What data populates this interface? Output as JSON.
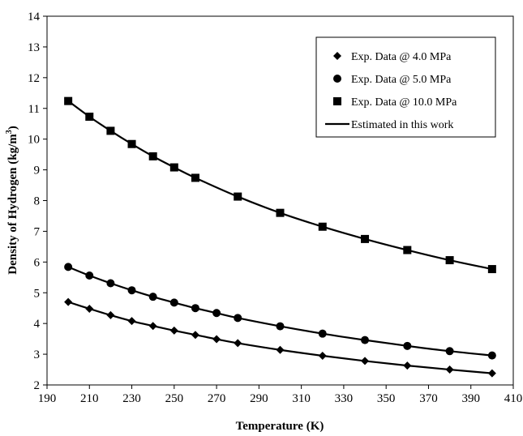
{
  "chart_data": {
    "type": "line",
    "xlabel": "Temperature (K)",
    "ylabel": "Density of Hydrogen (kg/m",
    "ylabel_sup": "3",
    "ylabel_close": ")",
    "xlim": [
      190,
      410
    ],
    "ylim": [
      2,
      14
    ],
    "xticks": [
      190,
      210,
      230,
      250,
      270,
      290,
      310,
      330,
      350,
      370,
      390,
      410
    ],
    "yticks": [
      2,
      3,
      4,
      5,
      6,
      7,
      8,
      9,
      10,
      11,
      12,
      13,
      14
    ],
    "grid": false,
    "legend_position": "top-right",
    "series": [
      {
        "name": "Exp. Data @ 4.0 MPa",
        "marker": "diamond",
        "x": [
          200,
          210,
          220,
          230,
          240,
          250,
          260,
          270,
          280,
          300,
          320,
          340,
          360,
          380,
          400
        ],
        "y": [
          4.7,
          4.48,
          4.27,
          4.08,
          3.92,
          3.77,
          3.63,
          3.49,
          3.36,
          3.14,
          2.95,
          2.78,
          2.63,
          2.5,
          2.38
        ]
      },
      {
        "name": "Exp. Data @ 5.0 MPa",
        "marker": "circle",
        "x": [
          200,
          210,
          220,
          230,
          240,
          250,
          260,
          270,
          280,
          300,
          320,
          340,
          360,
          380,
          400
        ],
        "y": [
          5.84,
          5.56,
          5.31,
          5.08,
          4.87,
          4.68,
          4.5,
          4.34,
          4.18,
          3.91,
          3.67,
          3.46,
          3.27,
          3.1,
          2.96
        ]
      },
      {
        "name": "Exp. Data @ 10.0 MPa",
        "marker": "square",
        "x": [
          200,
          210,
          220,
          230,
          240,
          250,
          260,
          280,
          300,
          320,
          340,
          360,
          380,
          400
        ],
        "y": [
          11.24,
          10.73,
          10.27,
          9.84,
          9.44,
          9.08,
          8.74,
          8.13,
          7.6,
          7.15,
          6.75,
          6.39,
          6.06,
          5.77
        ]
      },
      {
        "name": "Estimated in this work",
        "marker": "line"
      }
    ]
  }
}
